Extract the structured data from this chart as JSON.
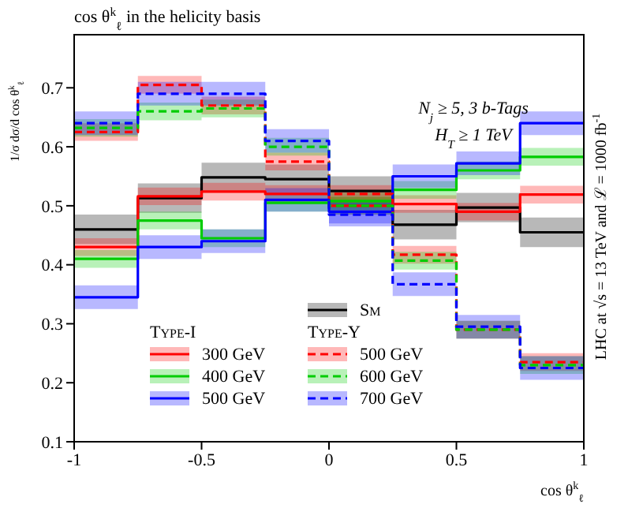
{
  "chart_data": {
    "type": "step",
    "title": "cos θ$^{k}$$_{ℓ}$ in the helicity basis",
    "xlabel": "cos θ$^{k}$$_{ℓ}$",
    "ylabel": "1/σ dσ/d cos θ$^{k}$$_{ℓ}$",
    "x": [
      -1,
      -0.75,
      -0.5,
      -0.25,
      0,
      0.25,
      0.5,
      0.75,
      1
    ],
    "xlim": [
      -1,
      1
    ],
    "xticks": [
      -1,
      -0.5,
      0,
      0.5,
      1
    ],
    "ylim": [
      0.1,
      0.79
    ],
    "yticks": [
      0.1,
      0.2,
      0.3,
      0.4,
      0.5,
      0.6,
      0.7
    ],
    "grid": false,
    "legend": "bottom",
    "series": [
      {
        "name": "Sm",
        "color": "#000000",
        "line_style": "solid",
        "values": [
          0.46,
          0.513,
          0.548,
          0.545,
          0.525,
          0.468,
          0.497,
          0.455,
          0.455
        ],
        "lower": [
          0.435,
          0.488,
          0.523,
          0.52,
          0.5,
          0.443,
          0.472,
          0.43,
          0.43
        ],
        "upper": [
          0.485,
          0.538,
          0.573,
          0.57,
          0.55,
          0.493,
          0.522,
          0.48,
          0.48
        ]
      },
      {
        "name": "300 GeV",
        "color": "#ff0000",
        "line_style": "solid",
        "values": [
          0.43,
          0.516,
          0.524,
          0.52,
          0.5,
          0.503,
          0.49,
          0.519,
          0.519
        ],
        "lower": [
          0.415,
          0.501,
          0.509,
          0.505,
          0.485,
          0.488,
          0.475,
          0.504,
          0.504
        ],
        "upper": [
          0.445,
          0.531,
          0.539,
          0.535,
          0.515,
          0.518,
          0.505,
          0.534,
          0.534
        ]
      },
      {
        "name": "400 GeV",
        "color": "#00cc00",
        "line_style": "solid",
        "values": [
          0.41,
          0.475,
          0.445,
          0.505,
          0.508,
          0.527,
          0.56,
          0.583,
          0.583
        ],
        "lower": [
          0.395,
          0.46,
          0.43,
          0.49,
          0.493,
          0.512,
          0.545,
          0.568,
          0.568
        ],
        "upper": [
          0.425,
          0.49,
          0.46,
          0.52,
          0.523,
          0.542,
          0.575,
          0.598,
          0.598
        ]
      },
      {
        "name": "500 GeV",
        "color": "#0000ff",
        "line_style": "solid",
        "values": [
          0.345,
          0.43,
          0.44,
          0.51,
          0.49,
          0.55,
          0.572,
          0.64,
          0.64
        ],
        "lower": [
          0.325,
          0.41,
          0.42,
          0.49,
          0.47,
          0.53,
          0.552,
          0.62,
          0.62
        ],
        "upper": [
          0.365,
          0.45,
          0.46,
          0.53,
          0.51,
          0.57,
          0.592,
          0.66,
          0.66
        ]
      },
      {
        "name": "500 GeV",
        "color": "#ff0000",
        "line_style": "dashed",
        "values": [
          0.625,
          0.705,
          0.67,
          0.575,
          0.52,
          0.417,
          0.29,
          0.235,
          0.235
        ],
        "lower": [
          0.61,
          0.69,
          0.655,
          0.56,
          0.505,
          0.402,
          0.275,
          0.22,
          0.22
        ],
        "upper": [
          0.64,
          0.72,
          0.685,
          0.59,
          0.535,
          0.432,
          0.305,
          0.25,
          0.25
        ]
      },
      {
        "name": "600 GeV",
        "color": "#00cc00",
        "line_style": "dashed",
        "values": [
          0.632,
          0.66,
          0.665,
          0.6,
          0.5,
          0.407,
          0.29,
          0.23,
          0.23
        ],
        "lower": [
          0.617,
          0.645,
          0.65,
          0.585,
          0.485,
          0.392,
          0.275,
          0.215,
          0.215
        ],
        "upper": [
          0.647,
          0.675,
          0.68,
          0.615,
          0.515,
          0.422,
          0.305,
          0.245,
          0.245
        ]
      },
      {
        "name": "700 GeV",
        "color": "#0000ff",
        "line_style": "dashed",
        "values": [
          0.64,
          0.69,
          0.69,
          0.61,
          0.485,
          0.367,
          0.295,
          0.225,
          0.225
        ],
        "lower": [
          0.62,
          0.67,
          0.67,
          0.59,
          0.465,
          0.347,
          0.275,
          0.205,
          0.205
        ],
        "upper": [
          0.66,
          0.71,
          0.71,
          0.63,
          0.505,
          0.387,
          0.315,
          0.245,
          0.245
        ]
      }
    ],
    "annotations": [
      "N$_{j}$ ≥ 5, 3 b-Tags",
      "H$_{T}$ ≥ 1 TeV",
      "LHC at √s = 13 TeV and ℒ = 1000 fb$^{-1}$",
      "Type-I",
      "Type-Y"
    ]
  }
}
